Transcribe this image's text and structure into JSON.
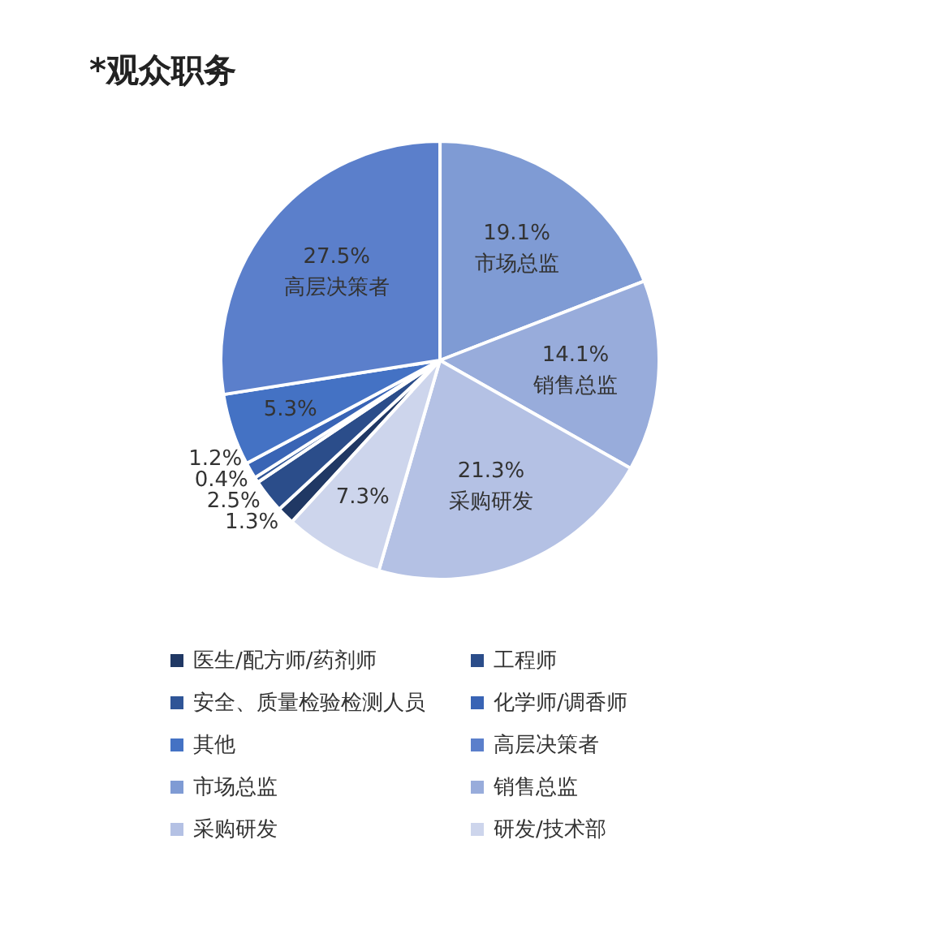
{
  "chart_data": {
    "type": "pie",
    "title": "*观众职务",
    "categories": [
      "医生/配方师/药剂师",
      "工程师",
      "安全、质量检验检测人员",
      "化学师/调香师",
      "其他",
      "高层决策者",
      "市场总监",
      "销售总监",
      "采购研发",
      "研发/技术部"
    ],
    "values": [
      1.3,
      2.5,
      0.4,
      1.2,
      5.3,
      27.5,
      19.1,
      14.1,
      21.3,
      7.3
    ],
    "colors": [
      "#203864",
      "#2b4d8a",
      "#2f5597",
      "#3964b5",
      "#4472c4",
      "#5b7fcb",
      "#7f9bd4",
      "#98acdb",
      "#b4c1e4",
      "#cdd5ec"
    ],
    "value_labels": [
      "1.3%",
      "2.5%",
      "0.4%",
      "1.2%",
      "5.3%",
      "27.5%",
      "19.1%",
      "14.1%",
      "21.3%",
      "7.3%"
    ],
    "legend": "bottom"
  }
}
